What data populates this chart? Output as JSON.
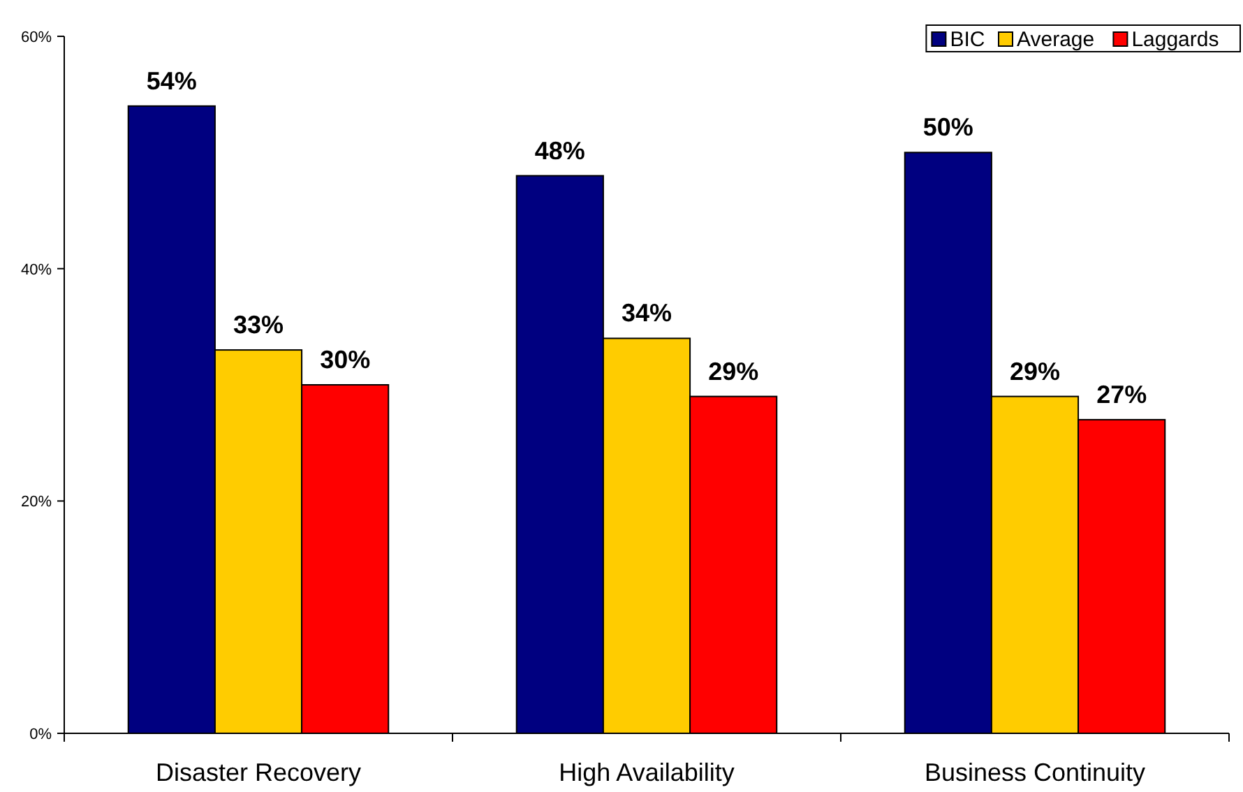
{
  "chart_data": {
    "type": "bar",
    "categories": [
      "Disaster Recovery",
      "High Availability",
      "Business Continuity"
    ],
    "series": [
      {
        "name": "BIC",
        "color": "#000080",
        "values": [
          54,
          48,
          50
        ],
        "value_labels": [
          "54%",
          "48%",
          "50%"
        ]
      },
      {
        "name": "Average",
        "color": "#ffcc00",
        "values": [
          33,
          34,
          29
        ],
        "value_labels": [
          "33%",
          "34%",
          "29%"
        ]
      },
      {
        "name": "Laggards",
        "color": "#ff0000",
        "values": [
          30,
          29,
          27
        ],
        "value_labels": [
          "30%",
          "29%",
          "27%"
        ]
      }
    ],
    "ylim": [
      0,
      60
    ],
    "yticks": [
      {
        "value": 0,
        "label": "0%"
      },
      {
        "value": 20,
        "label": "20%"
      },
      {
        "value": 40,
        "label": "40%"
      },
      {
        "value": 60,
        "label": "60%"
      }
    ],
    "grid": false,
    "legend": "top right"
  }
}
